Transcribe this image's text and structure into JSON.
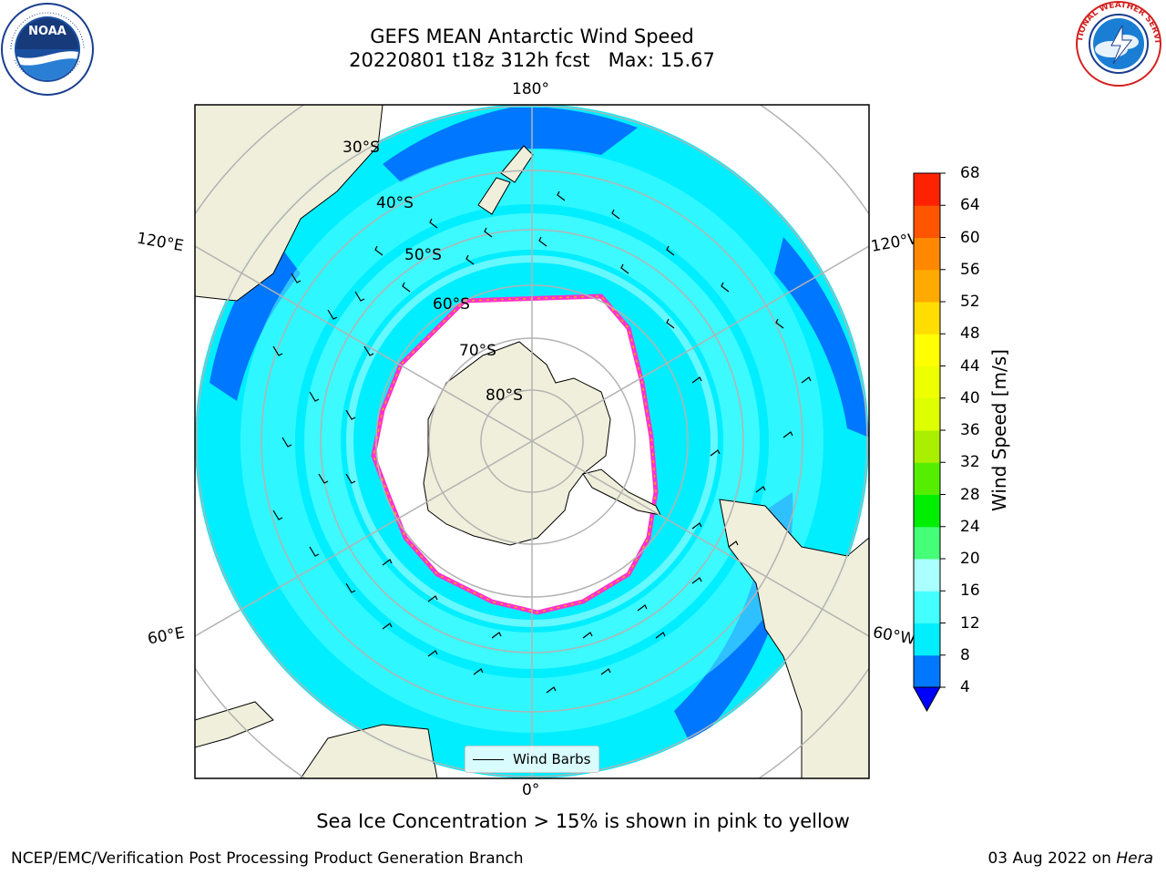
{
  "title_line1": "GEFS MEAN Antarctic Wind Speed",
  "title_line2": "20220801 t18z 312h fcst   Max: 15.67",
  "subtitle": "Sea Ice Concentration > 15% is shown in pink to yellow",
  "footer_left": "NCEP/EMC/Verification Post Processing Product Generation Branch",
  "footer_right_date": "03 Aug 2022 on ",
  "footer_right_host": "Hera",
  "logos": {
    "left": "NOAA",
    "right": "NATIONAL WEATHER SERVICE"
  },
  "map": {
    "projection": "south-polar-stereographic",
    "longitude_labels": {
      "top": "180°",
      "bottom": "0°",
      "upper_left": "120°E",
      "upper_right": "120°W",
      "lower_left": "60°E",
      "lower_right": "60°W"
    },
    "latitude_labels": [
      "30°S",
      "40°S",
      "50°S",
      "60°S",
      "70°S",
      "80°S"
    ],
    "legend_label": "Wind Barbs"
  },
  "colorbar": {
    "label": "Wind Speed [m/s]",
    "ticks": [
      "68",
      "64",
      "60",
      "56",
      "52",
      "48",
      "44",
      "40",
      "36",
      "32",
      "28",
      "24",
      "20",
      "16",
      "12",
      "8",
      "4"
    ],
    "colors_bottom_to_top": [
      "#0077ff",
      "#00eeff",
      "#44ffff",
      "#aaffff",
      "#44ff77",
      "#00ee00",
      "#55ee00",
      "#aaee00",
      "#ddff00",
      "#eeff00",
      "#ffff00",
      "#ffdd00",
      "#ffaa00",
      "#ff8800",
      "#ff5500",
      "#ff2200"
    ],
    "extend_color": "#0000ff"
  },
  "colors": {
    "land": "#efefdb",
    "ocean_dark": "#0077ff",
    "ocean_mid": "#00eeff",
    "ocean_light": "#55ffff",
    "ice_edge": "#ff33cc",
    "ice_interior": "#ffffff"
  }
}
